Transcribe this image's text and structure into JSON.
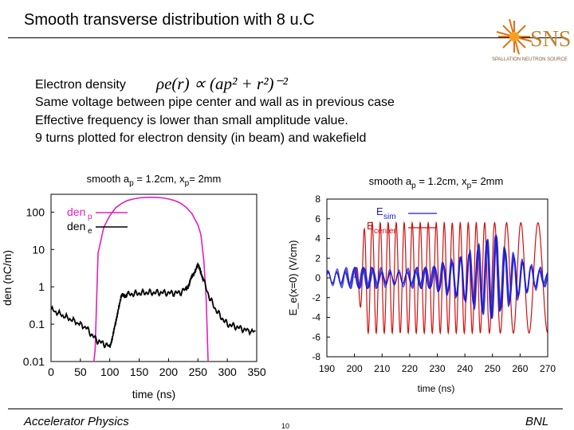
{
  "slide": {
    "title": "Smooth transverse distribution with 8 u.C",
    "bullets": [
      "Electron density",
      "Same voltage between pipe center and wall as in previous case",
      "Effective frequency is lower than small amplitude value.",
      "9 turns plotted for electron density (in beam) and wakefield"
    ],
    "formula_text": "ρe(r) ∝ (ap² + r²)⁻²",
    "logo_text": "SNS",
    "logo_subtext": "SPALLATION NEUTRON SOURCE"
  },
  "footer": {
    "left": "Accelerator Physics",
    "page": "10",
    "right": "BNL"
  },
  "chart_data": [
    {
      "type": "line",
      "title": "smooth a_p = 1.2cm, x_p= 2mm",
      "xlabel": "time (ns)",
      "ylabel": "den (nC/m)",
      "yscale": "log",
      "xlim": [
        0,
        350
      ],
      "ylim": [
        0.01,
        300
      ],
      "xticks": [
        0,
        50,
        100,
        150,
        200,
        250,
        300,
        350
      ],
      "yticks": [
        0.01,
        0.1,
        1,
        10,
        100
      ],
      "ytick_labels": [
        "0.01",
        "0.1",
        "1",
        "10",
        "100"
      ],
      "legend": "top-left",
      "series": [
        {
          "name": "den_p",
          "color": "#e020c0",
          "x": [
            70,
            75,
            80,
            90,
            100,
            110,
            120,
            130,
            140,
            150,
            160,
            170,
            180,
            190,
            200,
            210,
            220,
            230,
            240,
            250,
            255,
            260,
            264,
            268
          ],
          "y": [
            0.004,
            0.02,
            8,
            40,
            80,
            130,
            170,
            205,
            225,
            240,
            248,
            250,
            248,
            240,
            225,
            205,
            175,
            135,
            90,
            45,
            25,
            5,
            0.5,
            0.004
          ]
        },
        {
          "name": "den_e",
          "color": "#000000",
          "x": [
            0,
            20,
            40,
            60,
            70,
            80,
            90,
            100,
            105,
            110,
            115,
            120,
            125,
            130,
            140,
            150,
            160,
            170,
            180,
            190,
            200,
            210,
            220,
            230,
            235,
            240,
            245,
            250,
            255,
            260,
            270,
            280,
            290,
            300,
            310,
            320,
            330,
            350
          ],
          "y": [
            0.25,
            0.17,
            0.12,
            0.08,
            0.05,
            0.035,
            0.03,
            0.025,
            0.05,
            0.1,
            0.3,
            0.55,
            0.6,
            0.62,
            0.65,
            0.67,
            0.7,
            0.7,
            0.7,
            0.7,
            0.68,
            0.68,
            0.7,
            0.9,
            1.2,
            1.8,
            2.8,
            3.6,
            2.6,
            1.4,
            0.5,
            0.25,
            0.15,
            0.1,
            0.09,
            0.08,
            0.07,
            0.06
          ]
        }
      ]
    },
    {
      "type": "line",
      "title": "smooth a_p = 1.2cm, x_p= 2mm",
      "xlabel": "time (ns)",
      "ylabel": "E_e(x=0) (V/cm)",
      "xlim": [
        190,
        270
      ],
      "ylim": [
        -8,
        8
      ],
      "xticks": [
        190,
        200,
        210,
        220,
        230,
        240,
        250,
        260,
        270
      ],
      "yticks": [
        -8,
        -6,
        -4,
        -2,
        0,
        2,
        4,
        6,
        8
      ],
      "legend": "top-left",
      "series": [
        {
          "name": "E_sim",
          "color": "#1a1ad0",
          "start": 190,
          "end": 270,
          "base_amp": 0.8,
          "period_ns": 3.2,
          "amp_growth": "rises toward 4 near 250 ns"
        },
        {
          "name": "E_center",
          "color": "#d01010",
          "start": 200,
          "end": 270,
          "amp": 5.6,
          "period_ns": 2.9,
          "period_growth": "lengthens after 245 ns"
        }
      ]
    }
  ]
}
